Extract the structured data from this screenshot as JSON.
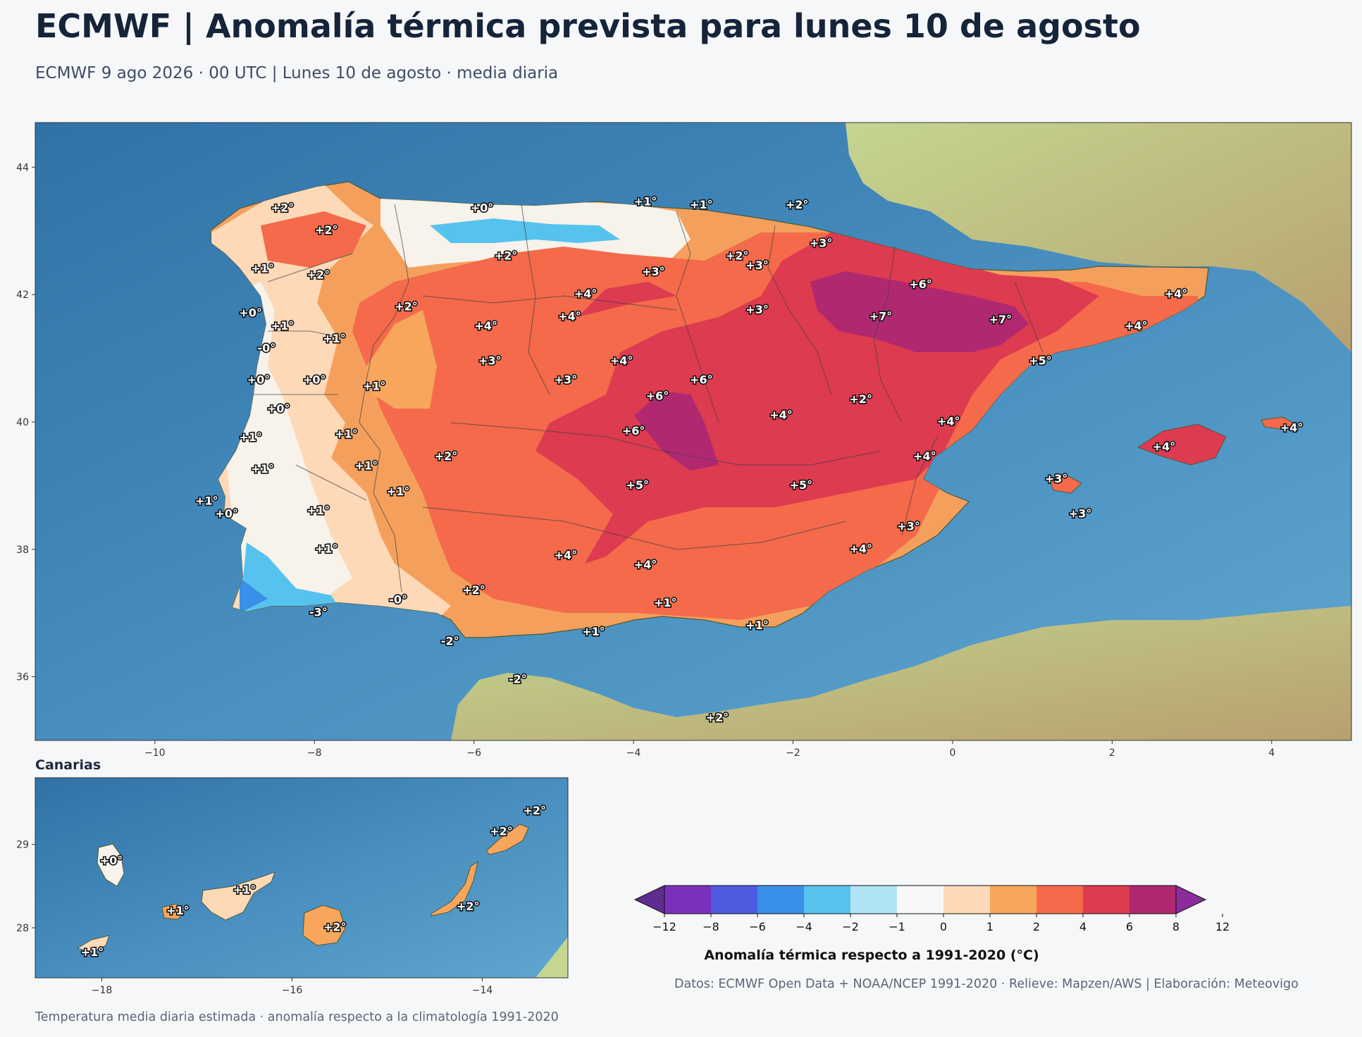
{
  "title": "ECMWF | Anomalía térmica prevista para lunes 10 de agosto",
  "subtitle": "ECMWF 9 ago 2026 · 00 UTC  |  Lunes 10 de agosto · media diaria",
  "inset_title": "Canarias",
  "footer_left": "Temperatura media diaria estimada · anomalía respecto a la climatología 1991-2020",
  "footer_right": "Datos: ECMWF Open Data + NOAA/NCEP 1991-2020 · Relieve: Mapzen/AWS  |  Elaboración: Meteovigo",
  "colorbar": {
    "title": "Anomalía térmica respecto a 1991-2020 (°C)",
    "ticks": [
      "−12",
      "−8",
      "−6",
      "−4",
      "−2",
      "−1",
      "0",
      "1",
      "2",
      "4",
      "6",
      "8",
      "12"
    ],
    "colors": [
      "#5e2d8f",
      "#7b30bb",
      "#4f5ae0",
      "#3a8fe8",
      "#56c3ef",
      "#b0e3f3",
      "#f7f7f7",
      "#fdd9b8",
      "#f8a65b",
      "#f46a4b",
      "#dd3b50",
      "#b02870",
      "#8b2c9b"
    ]
  },
  "main_map": {
    "lon_range": [
      -11.5,
      5
    ],
    "lat_range": [
      35,
      44.7
    ],
    "x_ticks": [
      "−10",
      "−8",
      "−6",
      "−4",
      "−2",
      "0",
      "2",
      "4"
    ],
    "y_ticks": [
      "44",
      "42",
      "40",
      "38",
      "36"
    ],
    "labels": [
      {
        "text": "+2°",
        "lon": -8.4,
        "lat": 43.35
      },
      {
        "text": "+0°",
        "lon": -5.9,
        "lat": 43.35
      },
      {
        "text": "+1°",
        "lon": -3.85,
        "lat": 43.45
      },
      {
        "text": "+1°",
        "lon": -3.15,
        "lat": 43.4
      },
      {
        "text": "+2°",
        "lon": -1.95,
        "lat": 43.4
      },
      {
        "text": "+2°",
        "lon": -7.85,
        "lat": 43.0
      },
      {
        "text": "+3°",
        "lon": -1.65,
        "lat": 42.8
      },
      {
        "text": "+2°",
        "lon": -5.6,
        "lat": 42.6
      },
      {
        "text": "+2°",
        "lon": -2.7,
        "lat": 42.6
      },
      {
        "text": "+3°",
        "lon": -2.45,
        "lat": 42.45
      },
      {
        "text": "+1°",
        "lon": -8.65,
        "lat": 42.4
      },
      {
        "text": "+2°",
        "lon": -7.95,
        "lat": 42.3
      },
      {
        "text": "+3°",
        "lon": -3.75,
        "lat": 42.35
      },
      {
        "text": "+6°",
        "lon": -0.4,
        "lat": 42.15
      },
      {
        "text": "+4°",
        "lon": -4.6,
        "lat": 42.0
      },
      {
        "text": "+4°",
        "lon": 2.8,
        "lat": 42.0
      },
      {
        "text": "+2°",
        "lon": -6.85,
        "lat": 41.8
      },
      {
        "text": "+3°",
        "lon": -2.45,
        "lat": 41.75
      },
      {
        "text": "+0°",
        "lon": -8.8,
        "lat": 41.7
      },
      {
        "text": "+4°",
        "lon": -4.8,
        "lat": 41.65
      },
      {
        "text": "+7°",
        "lon": -0.9,
        "lat": 41.65
      },
      {
        "text": "+7°",
        "lon": 0.6,
        "lat": 41.6
      },
      {
        "text": "+1°",
        "lon": -8.4,
        "lat": 41.5
      },
      {
        "text": "+4°",
        "lon": -5.85,
        "lat": 41.5
      },
      {
        "text": "+4°",
        "lon": 2.3,
        "lat": 41.5
      },
      {
        "text": "+1°",
        "lon": -7.75,
        "lat": 41.3
      },
      {
        "text": "-0°",
        "lon": -8.6,
        "lat": 41.15
      },
      {
        "text": "+3°",
        "lon": -5.8,
        "lat": 40.95
      },
      {
        "text": "+4°",
        "lon": -4.15,
        "lat": 40.95
      },
      {
        "text": "+5°",
        "lon": 1.1,
        "lat": 40.95
      },
      {
        "text": "+0°",
        "lon": -8.7,
        "lat": 40.65
      },
      {
        "text": "+0°",
        "lon": -8.0,
        "lat": 40.65
      },
      {
        "text": "+3°",
        "lon": -4.85,
        "lat": 40.65
      },
      {
        "text": "+6°",
        "lon": -3.15,
        "lat": 40.65
      },
      {
        "text": "+1°",
        "lon": -7.25,
        "lat": 40.55
      },
      {
        "text": "+6°",
        "lon": -3.7,
        "lat": 40.4
      },
      {
        "text": "+2°",
        "lon": -1.15,
        "lat": 40.35
      },
      {
        "text": "+0°",
        "lon": -8.45,
        "lat": 40.2
      },
      {
        "text": "+4°",
        "lon": -2.15,
        "lat": 40.1
      },
      {
        "text": "+4°",
        "lon": -0.05,
        "lat": 40.0
      },
      {
        "text": "+6°",
        "lon": -4.0,
        "lat": 39.85
      },
      {
        "text": "+1°",
        "lon": -7.6,
        "lat": 39.8
      },
      {
        "text": "+1°",
        "lon": -8.8,
        "lat": 39.75
      },
      {
        "text": "+4°",
        "lon": 4.25,
        "lat": 39.9
      },
      {
        "text": "+4°",
        "lon": 2.65,
        "lat": 39.6
      },
      {
        "text": "+2°",
        "lon": -6.35,
        "lat": 39.45
      },
      {
        "text": "+4°",
        "lon": -0.35,
        "lat": 39.45
      },
      {
        "text": "+1°",
        "lon": -7.35,
        "lat": 39.3
      },
      {
        "text": "+1°",
        "lon": -8.65,
        "lat": 39.25
      },
      {
        "text": "+3°",
        "lon": 1.3,
        "lat": 39.1
      },
      {
        "text": "+5°",
        "lon": -3.95,
        "lat": 39.0
      },
      {
        "text": "+5°",
        "lon": -1.9,
        "lat": 39.0
      },
      {
        "text": "+1°",
        "lon": -6.95,
        "lat": 38.9
      },
      {
        "text": "+1°",
        "lon": -9.35,
        "lat": 38.75
      },
      {
        "text": "+0°",
        "lon": -9.1,
        "lat": 38.55
      },
      {
        "text": "+1°",
        "lon": -7.95,
        "lat": 38.6
      },
      {
        "text": "+3°",
        "lon": 1.6,
        "lat": 38.55
      },
      {
        "text": "+3°",
        "lon": -0.55,
        "lat": 38.35
      },
      {
        "text": "+1°",
        "lon": -7.85,
        "lat": 38.0
      },
      {
        "text": "+4°",
        "lon": -1.15,
        "lat": 38.0
      },
      {
        "text": "+4°",
        "lon": -4.85,
        "lat": 37.9
      },
      {
        "text": "+4°",
        "lon": -3.85,
        "lat": 37.75
      },
      {
        "text": "+2°",
        "lon": -6.0,
        "lat": 37.35
      },
      {
        "text": "-0°",
        "lon": -6.95,
        "lat": 37.2
      },
      {
        "text": "+1°",
        "lon": -3.6,
        "lat": 37.15
      },
      {
        "text": "-3°",
        "lon": -7.95,
        "lat": 37.0
      },
      {
        "text": "+1°",
        "lon": -2.45,
        "lat": 36.8
      },
      {
        "text": "+1°",
        "lon": -4.5,
        "lat": 36.7
      },
      {
        "text": "-2°",
        "lon": -6.3,
        "lat": 36.55
      },
      {
        "text": "-2°",
        "lon": -5.45,
        "lat": 35.95
      },
      {
        "text": "+2°",
        "lon": -2.95,
        "lat": 35.35
      }
    ]
  },
  "inset_map": {
    "lon_range": [
      -18.7,
      -13.1
    ],
    "lat_range": [
      27.4,
      29.8
    ],
    "x_ticks": [
      "−18",
      "−16",
      "−14"
    ],
    "y_ticks": [
      "29",
      "28"
    ],
    "labels": [
      {
        "text": "+0°",
        "lon": -17.9,
        "lat": 28.8
      },
      {
        "text": "+1°",
        "lon": -17.2,
        "lat": 28.2
      },
      {
        "text": "+1°",
        "lon": -16.5,
        "lat": 28.45
      },
      {
        "text": "+2°",
        "lon": -15.55,
        "lat": 28.0
      },
      {
        "text": "+2°",
        "lon": -14.15,
        "lat": 28.25
      },
      {
        "text": "+2°",
        "lon": -13.8,
        "lat": 29.15
      },
      {
        "text": "+2°",
        "lon": -13.45,
        "lat": 29.4
      },
      {
        "text": "+1°",
        "lon": -18.1,
        "lat": 27.7
      }
    ]
  }
}
